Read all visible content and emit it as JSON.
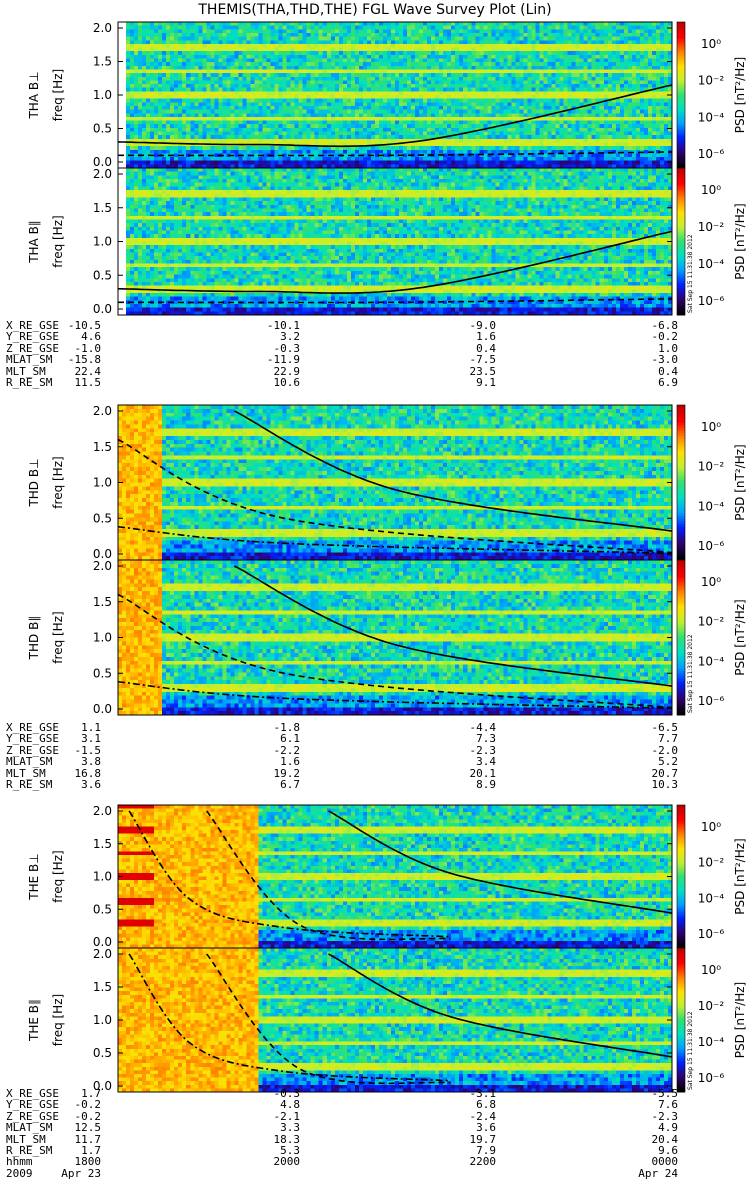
{
  "title": "THEMIS(THA,THD,THE) FGL Wave Survey Plot (Lin)",
  "chart_data": {
    "type": "heatmap",
    "colorbar": {
      "label": "PSD [nT²/Hz]",
      "ticks": [
        "10⁰",
        "10⁻²",
        "10⁻⁴",
        "10⁻⁶"
      ],
      "scale": "log",
      "colormap": [
        "#000000",
        "#300070",
        "#0020ff",
        "#00a0ff",
        "#00e0c0",
        "#30e070",
        "#c0f030",
        "#ffe000",
        "#ff8000",
        "#ff0000",
        "#c00000"
      ]
    },
    "freq_axis": {
      "label": "freq [Hz]",
      "range": [
        0,
        2.0
      ],
      "ticks": [
        "0.0",
        "0.5",
        "1.0",
        "1.5",
        "2.0"
      ]
    },
    "panels": [
      {
        "label": "THA B⊥",
        "probe": "THA"
      },
      {
        "label": "THA B∥",
        "probe": "THA"
      },
      {
        "label": "THD B⊥",
        "probe": "THD"
      },
      {
        "label": "THD B∥",
        "probe": "THD"
      },
      {
        "label": "THE B⊥",
        "probe": "THE"
      },
      {
        "label": "THE B∥",
        "probe": "THE"
      }
    ],
    "overlay_curves_hz": {
      "THA": {
        "solid": [
          [
            0,
            0.3
          ],
          [
            0.25,
            0.26
          ],
          [
            0.55,
            0.32
          ],
          [
            1.0,
            1.15
          ]
        ],
        "dashed": [
          [
            0,
            0.1
          ],
          [
            0.5,
            0.1
          ],
          [
            1.0,
            0.15
          ]
        ]
      },
      "THD": {
        "solid": [
          [
            0.21,
            2.0
          ],
          [
            0.5,
            0.9
          ],
          [
            1.0,
            0.32
          ]
        ],
        "dashed": [
          [
            0,
            1.6
          ],
          [
            0.3,
            0.5
          ],
          [
            1.0,
            0.02
          ]
        ],
        "dashdot": [
          [
            0,
            0.38
          ],
          [
            0.3,
            0.15
          ],
          [
            1.0,
            0.01
          ]
        ]
      },
      "THE": {
        "solid": [
          [
            0.38,
            2.0
          ],
          [
            0.6,
            1.05
          ],
          [
            1.0,
            0.44
          ]
        ],
        "dashed": [
          [
            0.16,
            2.0
          ],
          [
            0.33,
            0.25
          ],
          [
            0.6,
            0.05
          ]
        ],
        "dashdot": [
          [
            0.02,
            2.0
          ],
          [
            0.13,
            0.65
          ],
          [
            0.3,
            0.22
          ],
          [
            0.6,
            0.08
          ]
        ]
      }
    },
    "background_lines_hz": [
      0.33,
      0.67,
      1.0,
      1.33,
      1.67
    ],
    "time_axis": {
      "row_label": "hhmm",
      "ticks": [
        "1800",
        "2000",
        "2200",
        "0000"
      ],
      "date_labels": [
        "2009",
        "Apr 23",
        "Apr 24"
      ]
    },
    "ephemeris": [
      {
        "probe": "THA",
        "rows": [
          {
            "name": "X_RE_GSE",
            "values": [
              "-10.5",
              "-10.1",
              "-9.0",
              "-6.8"
            ]
          },
          {
            "name": "Y_RE_GSE",
            "values": [
              "4.6",
              "3.2",
              "1.6",
              "-0.2"
            ]
          },
          {
            "name": "Z_RE_GSE",
            "values": [
              "-1.0",
              "-0.3",
              "0.4",
              "1.0"
            ]
          },
          {
            "name": "MLAT_SM",
            "values": [
              "-15.8",
              "-11.9",
              "-7.5",
              "-3.0"
            ]
          },
          {
            "name": "MLT_SM",
            "values": [
              "22.4",
              "22.9",
              "23.5",
              "0.4"
            ]
          },
          {
            "name": "R_RE_SM",
            "values": [
              "11.5",
              "10.6",
              "9.1",
              "6.9"
            ]
          }
        ]
      },
      {
        "probe": "THD",
        "rows": [
          {
            "name": "X_RE_GSE",
            "values": [
              "1.1",
              "-1.8",
              "-4.4",
              "-6.5"
            ]
          },
          {
            "name": "Y_RE_GSE",
            "values": [
              "3.1",
              "6.1",
              "7.3",
              "7.7"
            ]
          },
          {
            "name": "Z_RE_GSE",
            "values": [
              "-1.5",
              "-2.2",
              "-2.3",
              "-2.0"
            ]
          },
          {
            "name": "MLAT_SM",
            "values": [
              "3.8",
              "1.6",
              "3.4",
              "5.2"
            ]
          },
          {
            "name": "MLT_SM",
            "values": [
              "16.8",
              "19.2",
              "20.1",
              "20.7"
            ]
          },
          {
            "name": "R_RE_SM",
            "values": [
              "3.6",
              "6.7",
              "8.9",
              "10.3"
            ]
          }
        ]
      },
      {
        "probe": "THE",
        "rows": [
          {
            "name": "X_RE_GSE",
            "values": [
              "1.7",
              "-0.3",
              "-3.1",
              "-5.5"
            ]
          },
          {
            "name": "Y_RE_GSE",
            "values": [
              "-0.2",
              "4.8",
              "6.8",
              "7.6"
            ]
          },
          {
            "name": "Z_RE_GSE",
            "values": [
              "-0.2",
              "-2.1",
              "-2.4",
              "-2.3"
            ]
          },
          {
            "name": "MLAT_SM",
            "values": [
              "12.5",
              "3.3",
              "3.6",
              "4.9"
            ]
          },
          {
            "name": "MLT_SM",
            "values": [
              "11.7",
              "18.3",
              "19.7",
              "20.4"
            ]
          },
          {
            "name": "R_RE_SM",
            "values": [
              "1.7",
              "5.3",
              "7.9",
              "9.6"
            ]
          }
        ]
      }
    ],
    "stamp": "Sat Sep 15 11:31:38 2012"
  }
}
